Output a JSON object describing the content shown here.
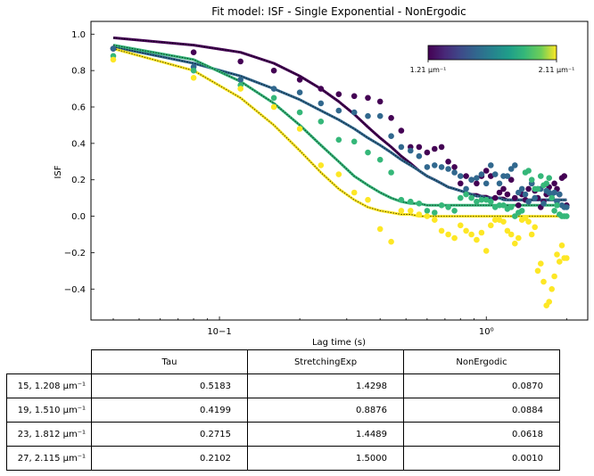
{
  "chart_data": {
    "type": "scatter",
    "title": "Fit model: ISF - Single Exponential - NonErgodic",
    "xlabel": "Lag time (s)",
    "ylabel": "ISF",
    "xscale": "log",
    "xlim": [
      0.033,
      2.4
    ],
    "ylim": [
      -0.57,
      1.07
    ],
    "xticks": [
      {
        "value": 0.1,
        "label": "10−1"
      },
      {
        "value": 1,
        "label": "10⁰"
      }
    ],
    "yticks": [
      1.0,
      0.8,
      0.6,
      0.4,
      0.2,
      0.0,
      -0.2,
      -0.4
    ],
    "ytick_labels": [
      "1.0",
      "0.8",
      "0.6",
      "0.4",
      "0.2",
      "0.0",
      "−0.2",
      "−0.4"
    ],
    "grid": false,
    "colorbar": {
      "min_label": "1.21 μm⁻¹",
      "max_label": "2.11 μm⁻¹",
      "colormap": "viridis"
    },
    "series": [
      {
        "name": "15, 1.208 μm⁻¹",
        "color": "#440154",
        "x": [
          0.04,
          0.08,
          0.12,
          0.16,
          0.2,
          0.24,
          0.28,
          0.32,
          0.36,
          0.4,
          0.44,
          0.48,
          0.52,
          0.56,
          0.6,
          0.64,
          0.68,
          0.72,
          0.76,
          0.8,
          0.84,
          0.88,
          0.92,
          0.96,
          1.0,
          1.04,
          1.08,
          1.12,
          1.16,
          1.2,
          1.24,
          1.28,
          1.32,
          1.36,
          1.4,
          1.44,
          1.48,
          1.52,
          1.56,
          1.6,
          1.64,
          1.68,
          1.72,
          1.76,
          1.8,
          1.84,
          1.88,
          1.92,
          1.96,
          2.0
        ],
        "y": [
          0.92,
          0.9,
          0.85,
          0.8,
          0.75,
          0.7,
          0.67,
          0.66,
          0.65,
          0.63,
          0.54,
          0.47,
          0.38,
          0.38,
          0.35,
          0.37,
          0.38,
          0.3,
          0.27,
          0.18,
          0.22,
          0.2,
          0.18,
          0.22,
          0.25,
          0.22,
          0.1,
          0.13,
          0.15,
          0.12,
          0.2,
          0.1,
          0.06,
          0.12,
          0.09,
          0.15,
          0.18,
          0.14,
          0.1,
          0.05,
          0.08,
          0.12,
          0.16,
          0.1,
          0.18,
          0.15,
          0.12,
          0.21,
          0.22,
          0.06
        ],
        "fit_y": [
          0.98,
          0.94,
          0.9,
          0.84,
          0.77,
          0.7,
          0.63,
          0.56,
          0.49,
          0.43,
          0.38,
          0.33,
          0.29,
          0.25,
          0.22,
          0.2,
          0.18,
          0.16,
          0.15,
          0.14,
          0.13,
          0.12,
          0.12,
          0.11,
          0.11,
          0.1,
          0.1,
          0.1,
          0.1,
          0.09,
          0.09,
          0.09,
          0.09,
          0.09,
          0.09,
          0.09,
          0.09,
          0.09,
          0.09,
          0.09,
          0.09,
          0.09,
          0.09,
          0.09,
          0.09,
          0.09,
          0.09,
          0.09,
          0.09,
          0.09
        ]
      },
      {
        "name": "19, 1.510 μm⁻¹",
        "color": "#31688e",
        "x": [
          0.04,
          0.08,
          0.12,
          0.16,
          0.2,
          0.24,
          0.28,
          0.32,
          0.36,
          0.4,
          0.44,
          0.48,
          0.52,
          0.56,
          0.6,
          0.64,
          0.68,
          0.72,
          0.76,
          0.8,
          0.84,
          0.88,
          0.92,
          0.96,
          1.0,
          1.04,
          1.08,
          1.12,
          1.16,
          1.2,
          1.24,
          1.28,
          1.32,
          1.36,
          1.4,
          1.44,
          1.48,
          1.52,
          1.56,
          1.6,
          1.64,
          1.68,
          1.72,
          1.76,
          1.8,
          1.84,
          1.88,
          1.92,
          1.96,
          2.0
        ],
        "y": [
          0.92,
          0.82,
          0.75,
          0.7,
          0.68,
          0.62,
          0.58,
          0.57,
          0.55,
          0.55,
          0.44,
          0.38,
          0.36,
          0.33,
          0.27,
          0.28,
          0.27,
          0.26,
          0.24,
          0.22,
          0.15,
          0.2,
          0.21,
          0.23,
          0.18,
          0.28,
          0.23,
          0.18,
          0.22,
          0.22,
          0.26,
          0.28,
          0.13,
          0.15,
          0.12,
          0.08,
          0.18,
          0.1,
          0.15,
          0.15,
          0.07,
          0.14,
          0.13,
          0.12,
          0.13,
          0.08,
          0.12,
          0.06,
          0.05,
          0.05
        ],
        "fit_y": [
          0.93,
          0.84,
          0.77,
          0.7,
          0.64,
          0.58,
          0.53,
          0.48,
          0.43,
          0.39,
          0.35,
          0.31,
          0.28,
          0.25,
          0.22,
          0.2,
          0.18,
          0.16,
          0.15,
          0.14,
          0.13,
          0.12,
          0.11,
          0.11,
          0.1,
          0.1,
          0.1,
          0.1,
          0.09,
          0.09,
          0.09,
          0.09,
          0.09,
          0.09,
          0.09,
          0.09,
          0.09,
          0.09,
          0.09,
          0.09,
          0.09,
          0.09,
          0.09,
          0.09,
          0.09,
          0.09,
          0.09,
          0.09,
          0.09,
          0.09
        ]
      },
      {
        "name": "23, 1.812 μm⁻¹",
        "color": "#35b779",
        "x": [
          0.04,
          0.08,
          0.12,
          0.16,
          0.2,
          0.24,
          0.28,
          0.32,
          0.36,
          0.4,
          0.44,
          0.48,
          0.52,
          0.56,
          0.6,
          0.64,
          0.68,
          0.72,
          0.76,
          0.8,
          0.84,
          0.88,
          0.92,
          0.96,
          1.0,
          1.04,
          1.08,
          1.12,
          1.16,
          1.2,
          1.24,
          1.28,
          1.32,
          1.36,
          1.4,
          1.44,
          1.48,
          1.52,
          1.56,
          1.6,
          1.64,
          1.68,
          1.72,
          1.76,
          1.8,
          1.84,
          1.88,
          1.92,
          1.96,
          2.0
        ],
        "y": [
          0.88,
          0.8,
          0.72,
          0.65,
          0.57,
          0.52,
          0.42,
          0.41,
          0.35,
          0.31,
          0.24,
          0.09,
          0.08,
          0.07,
          0.03,
          0.02,
          0.06,
          0.05,
          0.03,
          0.1,
          0.12,
          0.1,
          0.08,
          0.09,
          0.09,
          0.08,
          0.05,
          0.06,
          0.06,
          0.04,
          0.05,
          0.0,
          0.02,
          0.03,
          0.24,
          0.25,
          0.2,
          0.15,
          0.15,
          0.22,
          0.17,
          0.18,
          0.21,
          0.1,
          0.03,
          0.06,
          0.01,
          0.0,
          0.0,
          0.0
        ],
        "fit_y": [
          0.94,
          0.86,
          0.74,
          0.62,
          0.5,
          0.39,
          0.3,
          0.22,
          0.17,
          0.13,
          0.1,
          0.08,
          0.07,
          0.07,
          0.06,
          0.06,
          0.06,
          0.06,
          0.06,
          0.06,
          0.06,
          0.06,
          0.06,
          0.06,
          0.06,
          0.06,
          0.06,
          0.06,
          0.06,
          0.06,
          0.06,
          0.06,
          0.06,
          0.06,
          0.06,
          0.06,
          0.06,
          0.06,
          0.06,
          0.06,
          0.06,
          0.06,
          0.06,
          0.06,
          0.06,
          0.06,
          0.06,
          0.06,
          0.06,
          0.06
        ]
      },
      {
        "name": "27, 2.115 μm⁻¹",
        "color": "#fde725",
        "x": [
          0.04,
          0.08,
          0.12,
          0.16,
          0.2,
          0.24,
          0.28,
          0.32,
          0.36,
          0.4,
          0.44,
          0.48,
          0.52,
          0.56,
          0.6,
          0.64,
          0.68,
          0.72,
          0.76,
          0.8,
          0.84,
          0.88,
          0.92,
          0.96,
          1.0,
          1.04,
          1.08,
          1.12,
          1.16,
          1.2,
          1.24,
          1.28,
          1.32,
          1.36,
          1.4,
          1.44,
          1.48,
          1.52,
          1.56,
          1.6,
          1.64,
          1.68,
          1.72,
          1.76,
          1.8,
          1.84,
          1.88,
          1.92,
          1.96,
          2.0
        ],
        "y": [
          0.86,
          0.76,
          0.7,
          0.6,
          0.48,
          0.28,
          0.23,
          0.13,
          0.09,
          -0.07,
          -0.14,
          0.03,
          0.03,
          0.01,
          0.0,
          -0.02,
          -0.08,
          -0.1,
          -0.12,
          -0.05,
          -0.08,
          -0.1,
          -0.13,
          -0.09,
          -0.19,
          -0.05,
          -0.02,
          -0.02,
          -0.03,
          -0.08,
          -0.1,
          -0.15,
          -0.12,
          -0.02,
          -0.01,
          -0.03,
          -0.1,
          -0.06,
          -0.3,
          -0.26,
          -0.36,
          -0.49,
          -0.47,
          -0.4,
          -0.33,
          -0.21,
          -0.25,
          -0.16,
          -0.23,
          -0.23
        ],
        "fit_y": [
          0.92,
          0.8,
          0.65,
          0.5,
          0.36,
          0.24,
          0.15,
          0.09,
          0.05,
          0.03,
          0.02,
          0.01,
          0.01,
          0.0,
          0.0,
          0.0,
          0.0,
          0.0,
          0.0,
          0.0,
          0.0,
          0.0,
          0.0,
          0.0,
          0.0,
          0.0,
          0.0,
          0.0,
          0.0,
          0.0,
          0.0,
          0.0,
          0.0,
          0.0,
          0.0,
          0.0,
          0.0,
          0.0,
          0.0,
          0.0,
          0.0,
          0.0,
          0.0,
          0.0,
          0.0,
          0.0,
          0.0,
          0.0,
          0.0,
          0.0
        ]
      }
    ]
  },
  "table": {
    "columns": [
      "Tau",
      "StretchingExp",
      "NonErgodic"
    ],
    "rows": [
      {
        "label": "15, 1.208 μm⁻¹",
        "values": [
          "0.5183",
          "1.4298",
          "0.0870"
        ]
      },
      {
        "label": "19, 1.510 μm⁻¹",
        "values": [
          "0.4199",
          "0.8876",
          "0.0884"
        ]
      },
      {
        "label": "23, 1.812 μm⁻¹",
        "values": [
          "0.2715",
          "1.4489",
          "0.0618"
        ]
      },
      {
        "label": "27, 2.115 μm⁻¹",
        "values": [
          "0.2102",
          "1.5000",
          "0.0010"
        ]
      }
    ]
  }
}
